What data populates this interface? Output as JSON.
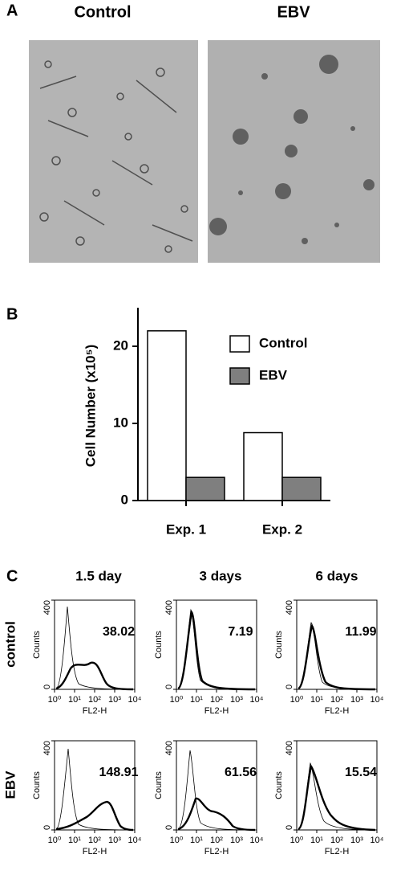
{
  "panels": {
    "a": {
      "label": "A",
      "images": [
        "Control",
        "EBV"
      ]
    },
    "b": {
      "label": "B"
    },
    "c": {
      "label": "C"
    }
  },
  "chart_data": {
    "type": "bar",
    "y_label": "Cell Number (x10⁵)",
    "categories": [
      "Exp. 1",
      "Exp. 2"
    ],
    "series": [
      {
        "name": "Control",
        "color": "#ffffff",
        "values": [
          22,
          8.8
        ]
      },
      {
        "name": "EBV",
        "color": "#7f7f7f",
        "values": [
          3,
          3
        ]
      }
    ],
    "ylim": [
      0,
      25
    ],
    "yticks": [
      0,
      10,
      20
    ]
  },
  "flow": {
    "columns": [
      "1.5 day",
      "3 days",
      "6 days"
    ],
    "rows": [
      "control",
      "EBV"
    ],
    "values": [
      [
        38.02,
        7.19,
        11.99
      ],
      [
        148.91,
        61.56,
        15.54
      ]
    ],
    "x_label": "FL2-H",
    "y_label": "Counts",
    "log_x": true,
    "xlim": [
      1,
      10000
    ],
    "xticks": [
      {
        "value": 1,
        "label": "10⁰"
      },
      {
        "value": 10,
        "label": "10¹"
      },
      {
        "value": 100,
        "label": "10²"
      },
      {
        "value": 1000,
        "label": "10³"
      },
      {
        "value": 10000,
        "label": "10⁴"
      }
    ],
    "ylim": [
      0,
      400
    ],
    "yticks": [
      0,
      400
    ]
  }
}
